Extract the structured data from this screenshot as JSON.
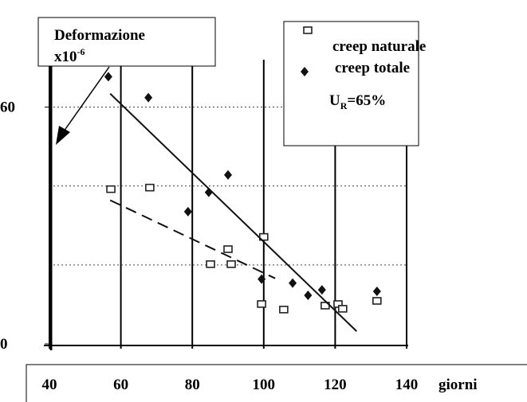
{
  "chart_data": {
    "type": "scatter",
    "annotation": {
      "text": "Deformazione",
      "unit": "x10",
      "unit_exp": "-6"
    },
    "legend_note": {
      "base": "U",
      "sub": "R",
      "rest": "=65%"
    },
    "x_label": "giorni",
    "xlim": [
      40,
      140
    ],
    "xticks": [
      40,
      60,
      80,
      100,
      120,
      140
    ],
    "ylim": [
      0,
      72
    ],
    "yticks": [
      0,
      60
    ],
    "ygrid": [
      20,
      40,
      60
    ],
    "series": [
      {
        "name": "creep naturale",
        "marker": "square",
        "color": "#222222",
        "x": [
          57.2,
          68.1,
          85.1,
          90.0,
          90.9,
          100.0,
          99.4,
          105.6,
          117.2,
          120.8,
          122.1,
          131.7
        ],
        "values": [
          39.2,
          39.6,
          20.2,
          24.0,
          20.2,
          27.1,
          10.1,
          8.7,
          9.7,
          10.1,
          8.9,
          10.9
        ],
        "trend": {
          "x": [
            57,
            103.2
          ],
          "values": [
            36.4,
            16.6
          ],
          "dash": true
        }
      },
      {
        "name": "creep totale",
        "marker": "diamond",
        "color": "#111111",
        "x": [
          56.5,
          67.7,
          78.8,
          84.6,
          90.0,
          99.4,
          108.1,
          112.4,
          116.3,
          131.7
        ],
        "values": [
          67.7,
          62.4,
          33.5,
          38.4,
          42.8,
          16.4,
          15.4,
          12.3,
          13.7,
          13.3
        ],
        "trend": {
          "x": [
            57,
            126
          ],
          "values": [
            63.4,
            3.2
          ],
          "dash": false
        }
      }
    ]
  }
}
